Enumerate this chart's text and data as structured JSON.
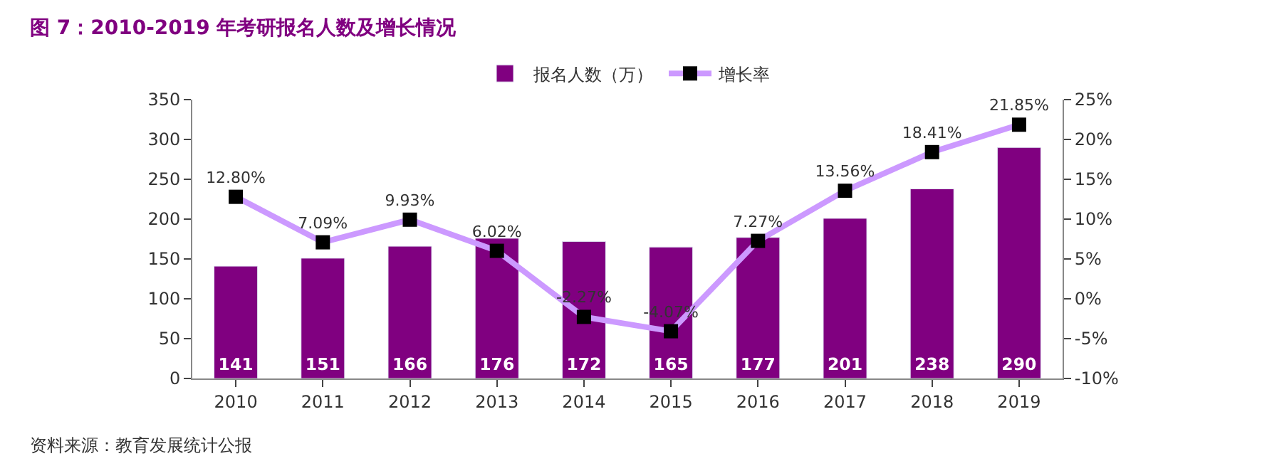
{
  "chart_data": {
    "type": "bar",
    "title": "图 7：2010-2019 年考研报名人数及增长情况",
    "categories": [
      "2010",
      "2011",
      "2012",
      "2013",
      "2014",
      "2015",
      "2016",
      "2017",
      "2018",
      "2019"
    ],
    "series": [
      {
        "name": "报名人数（万）",
        "color": "#800080",
        "values": [
          141,
          151,
          166,
          176,
          172,
          165,
          177,
          201,
          238,
          290
        ],
        "value_labels": [
          "141",
          "151",
          "166",
          "176",
          "172",
          "165",
          "177",
          "201",
          "238",
          "290"
        ]
      },
      {
        "name": "增长率",
        "type": "line",
        "axis": "y2",
        "color": "#cc99ff",
        "marker": "square",
        "values": [
          12.8,
          7.09,
          9.93,
          6.02,
          -2.27,
          -4.07,
          7.27,
          13.56,
          18.41,
          21.85
        ],
        "value_labels": [
          "12.80%",
          "7.09%",
          "9.93%",
          "6.02%",
          "-2.27%",
          "-4.07%",
          "7.27%",
          "13.56%",
          "18.41%",
          "21.85%"
        ]
      }
    ],
    "ylim": [
      0,
      350
    ],
    "yticks": [
      0,
      50,
      100,
      150,
      200,
      250,
      300,
      350
    ],
    "y2lim": [
      -10,
      25
    ],
    "y2ticks": [
      {
        "value": -10,
        "label": "-10%"
      },
      {
        "value": -5,
        "label": "-5%"
      },
      {
        "value": 0,
        "label": "0%"
      },
      {
        "value": 5,
        "label": "5%"
      },
      {
        "value": 10,
        "label": "10%"
      },
      {
        "value": 15,
        "label": "15%"
      },
      {
        "value": 20,
        "label": "20%"
      },
      {
        "value": 25,
        "label": "25%"
      }
    ],
    "legend": "top",
    "annotations": [
      "资料来源：教育发展统计公报"
    ]
  }
}
